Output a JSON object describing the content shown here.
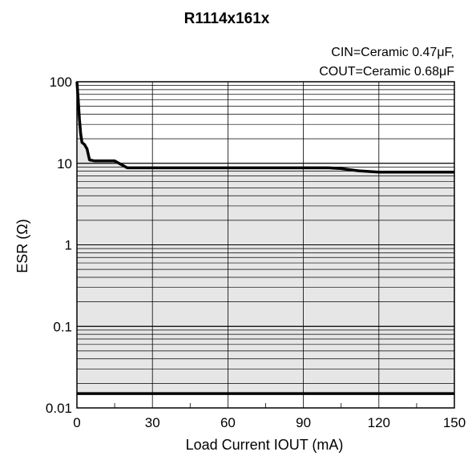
{
  "chart_data": {
    "type": "line",
    "title": "R1114x161x",
    "annotations": [
      {
        "lines": [
          "CIN=Ceramic 0.47μF,",
          "COUT=Ceramic 0.68μF"
        ]
      }
    ],
    "xlabel": "Load Current IOUT (mA)",
    "ylabel": "ESR (Ω)",
    "xlim": [
      0,
      150
    ],
    "ylim": [
      0.01,
      100
    ],
    "yscale": "log",
    "x_ticks": [
      "0",
      "30",
      "60",
      "90",
      "120",
      "150"
    ],
    "y_ticks": [
      "0.01",
      "0.1",
      "1",
      "10",
      "100"
    ],
    "grid": true,
    "stable_region_color": "#e6e6e6",
    "line_color": "#000000",
    "series": [
      {
        "points": [
          [
            0,
            100
          ],
          [
            0.5,
            60
          ],
          [
            1,
            35
          ],
          [
            1.5,
            23
          ],
          [
            2,
            18
          ],
          [
            3,
            17
          ],
          [
            4,
            15
          ],
          [
            5,
            11
          ],
          [
            7,
            10.7
          ],
          [
            10,
            10.7
          ],
          [
            15,
            10.7
          ],
          [
            20,
            8.8
          ],
          [
            40,
            8.8
          ],
          [
            60,
            8.8
          ],
          [
            80,
            8.8
          ],
          [
            100,
            8.8
          ],
          [
            105,
            8.6
          ],
          [
            112,
            8.1
          ],
          [
            120,
            7.8
          ],
          [
            150,
            7.8
          ]
        ]
      },
      {
        "points": [
          [
            0,
            0.015
          ],
          [
            150,
            0.015
          ]
        ]
      }
    ]
  }
}
